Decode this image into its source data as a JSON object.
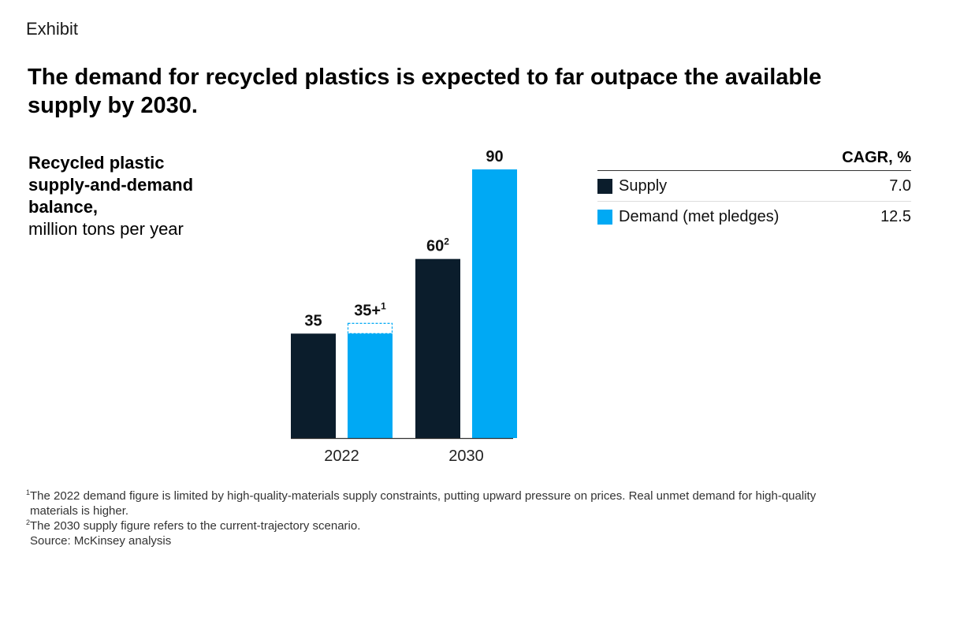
{
  "exhibit_label": "Exhibit",
  "headline": "The demand for recycled plastics is expected to far outpace the available supply by 2030.",
  "chart_title_bold": "Recycled plastic supply-and-demand balance,",
  "chart_title_unit": "million tons per year",
  "colors": {
    "supply": "#0b1d2c",
    "demand": "#00a9f4",
    "axis": "#333333"
  },
  "legend": {
    "header": "CAGR, %",
    "items": [
      {
        "name": "Supply",
        "value": "7.0",
        "color_key": "supply"
      },
      {
        "name": "Demand (met pledges)",
        "value": "12.5",
        "color_key": "demand"
      }
    ]
  },
  "chart_data": {
    "type": "bar",
    "title": "Recycled plastic supply-and-demand balance, million tons per year",
    "categories": [
      "2022",
      "2030"
    ],
    "series": [
      {
        "name": "Supply",
        "values": [
          35,
          60
        ],
        "labels": [
          "35",
          "60"
        ],
        "footnotes": [
          "",
          "2"
        ]
      },
      {
        "name": "Demand (met pledges)",
        "values": [
          35,
          90
        ],
        "labels": [
          "35+",
          "90"
        ],
        "footnotes": [
          "1",
          ""
        ]
      }
    ],
    "ylim": [
      0,
      90
    ],
    "xlabel": "",
    "ylabel": "",
    "legend": "top-right",
    "grid": false
  },
  "footnotes": [
    {
      "mark": "1",
      "text": "The 2022 demand figure is limited by high-quality-materials supply constraints, putting upward pressure on prices. Real unmet demand for high-quality"
    },
    {
      "mark": "",
      "text": "materials is higher."
    },
    {
      "mark": "2",
      "text": "The 2030 supply figure refers to the current-trajectory scenario."
    },
    {
      "mark": "",
      "text": "Source: McKinsey analysis"
    }
  ]
}
